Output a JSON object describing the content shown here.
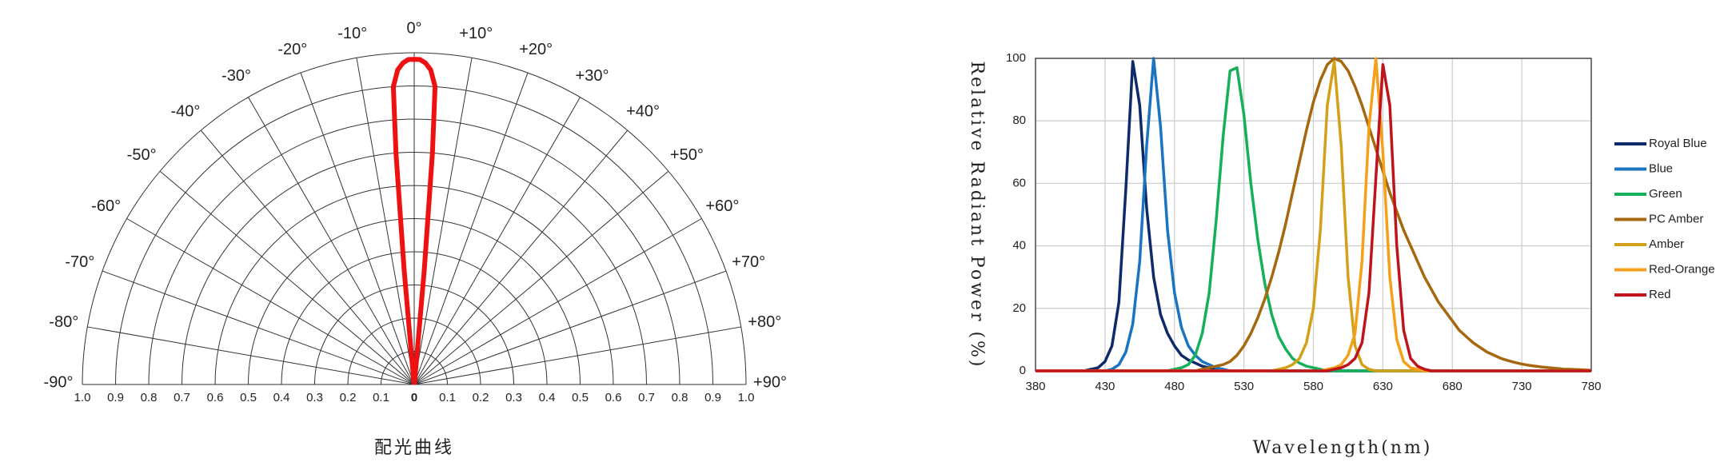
{
  "chart_data": [
    {
      "type": "polar",
      "caption": "配光曲线",
      "color": "#ee1111",
      "thetaticks": [
        {
          "value": -90,
          "label": "-90°"
        },
        {
          "value": -80,
          "label": "-80°"
        },
        {
          "value": -70,
          "label": "-70°"
        },
        {
          "value": -60,
          "label": "-60°"
        },
        {
          "value": -50,
          "label": "-50°"
        },
        {
          "value": -40,
          "label": "-40°"
        },
        {
          "value": -30,
          "label": "-30°"
        },
        {
          "value": -20,
          "label": "-20°"
        },
        {
          "value": -10,
          "label": "-10°"
        },
        {
          "value": 0,
          "label": "0°"
        },
        {
          "value": 10,
          "label": "+10°"
        },
        {
          "value": 20,
          "label": "+20°"
        },
        {
          "value": 30,
          "label": "+30°"
        },
        {
          "value": 40,
          "label": "+40°"
        },
        {
          "value": 50,
          "label": "+50°"
        },
        {
          "value": 60,
          "label": "+60°"
        },
        {
          "value": 70,
          "label": "+70°"
        },
        {
          "value": 80,
          "label": "+80°"
        },
        {
          "value": 90,
          "label": "+90°"
        }
      ],
      "rlim": [
        0,
        1
      ],
      "rticks": [
        0,
        0.1,
        0.2,
        0.3,
        0.4,
        0.5,
        0.6,
        0.7,
        0.8,
        0.9,
        {
          "value": 1,
          "label": "1.0"
        }
      ],
      "angles": [
        -90,
        -10,
        -6,
        -5,
        -4.5,
        -4,
        -3,
        -2,
        -1,
        0,
        1,
        2,
        3,
        4,
        4.5,
        5,
        6,
        10,
        90
      ],
      "values": [
        0,
        0,
        0.03,
        0.35,
        0.7,
        0.9,
        0.95,
        0.97,
        0.98,
        0.98,
        0.98,
        0.97,
        0.95,
        0.9,
        0.7,
        0.35,
        0.03,
        0,
        0
      ]
    },
    {
      "type": "line",
      "xlabel": "Wavelength(nm)",
      "ylabel": "Relative Radiant Power (%)",
      "grid": true,
      "legend": "right",
      "xlim": [
        380,
        780
      ],
      "xticks": [
        380,
        430,
        480,
        530,
        580,
        630,
        680,
        730,
        780
      ],
      "ylim": [
        0,
        100
      ],
      "yticks": [
        0,
        20,
        40,
        60,
        80,
        100
      ],
      "x": [
        380,
        385,
        390,
        395,
        400,
        405,
        410,
        415,
        420,
        425,
        430,
        435,
        440,
        445,
        450,
        455,
        460,
        465,
        470,
        475,
        480,
        485,
        490,
        495,
        500,
        505,
        510,
        515,
        520,
        525,
        530,
        535,
        540,
        545,
        550,
        555,
        560,
        565,
        570,
        575,
        580,
        585,
        590,
        595,
        600,
        605,
        610,
        615,
        620,
        625,
        630,
        635,
        640,
        645,
        650,
        655,
        660,
        665,
        670,
        675,
        680,
        685,
        690,
        695,
        700,
        705,
        710,
        715,
        720,
        725,
        730,
        735,
        740,
        745,
        750,
        755,
        760,
        765,
        770,
        775,
        780
      ],
      "series": [
        {
          "name": "Royal Blue",
          "color": "#0d2a6b",
          "values": [
            0,
            0,
            0,
            0,
            0,
            0,
            0,
            0,
            0.5,
            1,
            3,
            8,
            22,
            58,
            99,
            85,
            52,
            30,
            18,
            12,
            8,
            5,
            3.5,
            2.5,
            1.5,
            1,
            0.5,
            0,
            0,
            0,
            0,
            0,
            0,
            0,
            0,
            0,
            0,
            0,
            0,
            0,
            0,
            0,
            0,
            0,
            0,
            0,
            0,
            0,
            0,
            0,
            0,
            0,
            0,
            0,
            0,
            0,
            0,
            0,
            0,
            0,
            0,
            0,
            0,
            0,
            0,
            0,
            0,
            0,
            0,
            0,
            0,
            0,
            0,
            0,
            0,
            0,
            0,
            0,
            0,
            0,
            0
          ]
        },
        {
          "name": "Blue",
          "color": "#1b74c0",
          "values": [
            0,
            0,
            0,
            0,
            0,
            0,
            0,
            0,
            0,
            0,
            0,
            0.5,
            2,
            6,
            15,
            35,
            72,
            100,
            78,
            45,
            25,
            14,
            8,
            5,
            3,
            2,
            1,
            0.5,
            0,
            0,
            0,
            0,
            0,
            0,
            0,
            0,
            0,
            0,
            0,
            0,
            0,
            0,
            0,
            0,
            0,
            0,
            0,
            0,
            0,
            0,
            0,
            0,
            0,
            0,
            0,
            0,
            0,
            0,
            0,
            0,
            0,
            0,
            0,
            0,
            0,
            0,
            0,
            0,
            0,
            0,
            0,
            0,
            0,
            0,
            0,
            0,
            0,
            0,
            0,
            0,
            0
          ]
        },
        {
          "name": "Green",
          "color": "#16b05a",
          "values": [
            0,
            0,
            0,
            0,
            0,
            0,
            0,
            0,
            0,
            0,
            0,
            0,
            0,
            0,
            0,
            0,
            0,
            0,
            0,
            0,
            0.5,
            1,
            2,
            5,
            12,
            25,
            48,
            75,
            96,
            97,
            82,
            60,
            42,
            28,
            18,
            11,
            7,
            4,
            2.5,
            1.5,
            1,
            0.5,
            0,
            0,
            0,
            0,
            0,
            0,
            0,
            0,
            0,
            0,
            0,
            0,
            0,
            0,
            0,
            0,
            0,
            0,
            0,
            0,
            0,
            0,
            0,
            0,
            0,
            0,
            0,
            0,
            0,
            0,
            0,
            0,
            0,
            0,
            0,
            0,
            0,
            0,
            0
          ]
        },
        {
          "name": "PC Amber",
          "color": "#a6680e",
          "values": [
            0,
            0,
            0,
            0,
            0,
            0,
            0,
            0,
            0,
            0,
            0,
            0,
            0,
            0,
            0,
            0,
            0,
            0,
            0,
            0,
            0,
            0,
            0,
            0,
            0.5,
            1,
            1.5,
            2,
            3,
            5,
            8,
            12,
            17,
            23,
            30,
            38,
            47,
            57,
            67,
            77,
            86,
            93,
            98,
            100,
            99,
            96,
            91,
            85,
            78,
            71,
            64,
            57,
            51,
            45,
            40,
            35,
            30,
            26,
            22,
            19,
            16,
            13,
            11,
            9,
            7.5,
            6,
            5,
            4,
            3.3,
            2.7,
            2.2,
            1.8,
            1.5,
            1.2,
            1,
            0.8,
            0.6,
            0.5,
            0.4,
            0.3,
            0.2
          ]
        },
        {
          "name": "Amber",
          "color": "#d4a017",
          "values": [
            0,
            0,
            0,
            0,
            0,
            0,
            0,
            0,
            0,
            0,
            0,
            0,
            0,
            0,
            0,
            0,
            0,
            0,
            0,
            0,
            0,
            0,
            0,
            0,
            0,
            0,
            0,
            0,
            0,
            0,
            0,
            0,
            0,
            0,
            0,
            0.5,
            1,
            2,
            4,
            9,
            20,
            45,
            85,
            99,
            72,
            30,
            8,
            2,
            0.5,
            0,
            0,
            0,
            0,
            0,
            0,
            0,
            0,
            0,
            0,
            0,
            0,
            0,
            0,
            0,
            0,
            0,
            0,
            0,
            0,
            0,
            0,
            0,
            0,
            0,
            0,
            0,
            0,
            0,
            0,
            0,
            0
          ]
        },
        {
          "name": "Red-Orange",
          "color": "#f5a01a",
          "values": [
            0,
            0,
            0,
            0,
            0,
            0,
            0,
            0,
            0,
            0,
            0,
            0,
            0,
            0,
            0,
            0,
            0,
            0,
            0,
            0,
            0,
            0,
            0,
            0,
            0,
            0,
            0,
            0,
            0,
            0,
            0,
            0,
            0,
            0,
            0,
            0,
            0,
            0,
            0,
            0,
            0,
            0,
            0.5,
            1,
            2,
            5,
            12,
            35,
            78,
            100,
            70,
            30,
            10,
            3,
            1,
            0.5,
            0,
            0,
            0,
            0,
            0,
            0,
            0,
            0,
            0,
            0,
            0,
            0,
            0,
            0,
            0,
            0,
            0,
            0,
            0,
            0,
            0,
            0,
            0,
            0,
            0
          ]
        },
        {
          "name": "Red",
          "color": "#c0141c",
          "values": [
            0,
            0,
            0,
            0,
            0,
            0,
            0,
            0,
            0,
            0,
            0,
            0,
            0,
            0,
            0,
            0,
            0,
            0,
            0,
            0,
            0,
            0,
            0,
            0,
            0,
            0,
            0,
            0,
            0,
            0,
            0,
            0,
            0,
            0,
            0,
            0,
            0,
            0,
            0,
            0,
            0,
            0,
            0,
            0.5,
            1,
            2,
            4,
            9,
            25,
            62,
            98,
            85,
            40,
            13,
            4,
            1.5,
            0.5,
            0,
            0,
            0,
            0,
            0,
            0,
            0,
            0,
            0,
            0,
            0,
            0,
            0,
            0,
            0,
            0,
            0,
            0,
            0,
            0,
            0,
            0,
            0,
            0
          ]
        }
      ]
    }
  ]
}
